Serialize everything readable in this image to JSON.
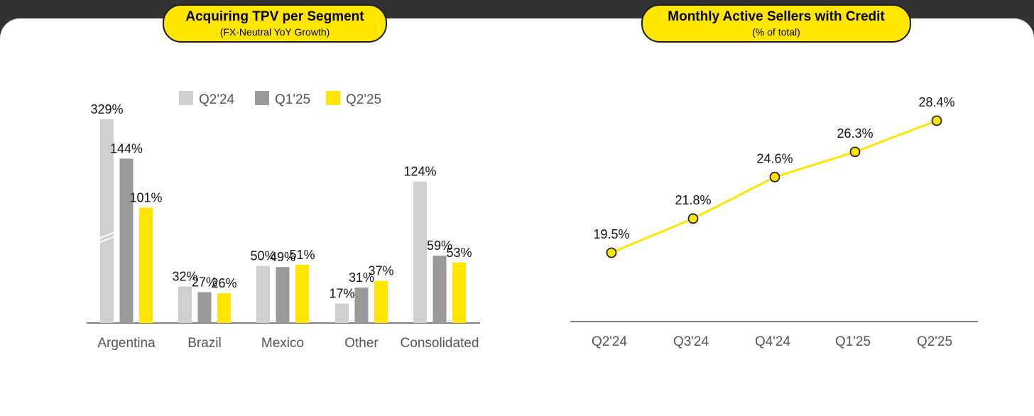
{
  "charts": {
    "left": {
      "title": "Acquiring TPV per Segment",
      "subtitle": "(FX-Neutral YoY Growth)"
    },
    "right": {
      "title": "Monthly Active Sellers with Credit",
      "subtitle": "(% of total)"
    }
  },
  "colors": {
    "q2_24": "#CFCFCF",
    "q1_25": "#9A9A9A",
    "q2_25": "#FFE600",
    "dark": "#333333",
    "axis": "#555555"
  },
  "chart_data": [
    {
      "type": "bar",
      "title": "Acquiring TPV per Segment",
      "subtitle": "(FX-Neutral YoY Growth)",
      "categories": [
        "Argentina",
        "Brazil",
        "Mexico",
        "Other",
        "Consolidated"
      ],
      "series": [
        {
          "name": "Q2'24",
          "values": [
            329,
            32,
            50,
            17,
            124
          ],
          "labels": [
            "329%",
            "32%",
            "50%",
            "17%",
            "124%"
          ]
        },
        {
          "name": "Q1'25",
          "values": [
            144,
            27,
            49,
            31,
            59
          ],
          "labels": [
            "144%",
            "27%",
            "49%",
            "31%",
            "59%"
          ]
        },
        {
          "name": "Q2'25",
          "values": [
            101,
            26,
            51,
            37,
            53
          ],
          "labels": [
            "101%",
            "26%",
            "51%",
            "37%",
            "53%"
          ]
        }
      ],
      "axis_break": true,
      "legend": "top",
      "grid": false
    },
    {
      "type": "line",
      "title": "Monthly Active Sellers with Credit",
      "subtitle": "(% of total)",
      "categories": [
        "Q2'24",
        "Q3'24",
        "Q4'24",
        "Q1'25",
        "Q2'25"
      ],
      "series": [
        {
          "name": "",
          "values": [
            19.5,
            21.8,
            24.6,
            26.3,
            28.4
          ],
          "labels": [
            "19.5%",
            "21.8%",
            "24.6%",
            "26.3%",
            "28.4%"
          ]
        }
      ],
      "legend": "none",
      "grid": false
    }
  ]
}
